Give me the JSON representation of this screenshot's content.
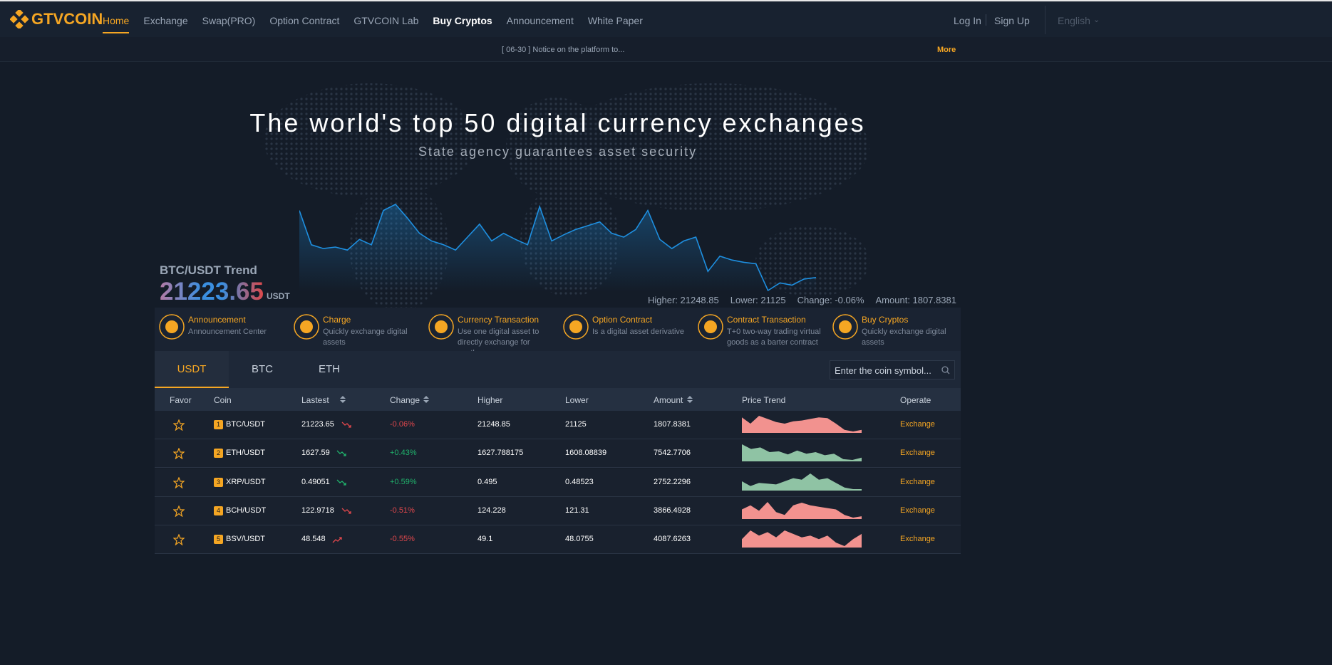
{
  "nav": {
    "logo": "GTVCOIN",
    "items": [
      "Home",
      "Exchange",
      "Swap(PRO)",
      "Option Contract",
      "GTVCOIN Lab",
      "Buy Cryptos",
      "Announcement",
      "White Paper"
    ],
    "login": "Log In",
    "signup": "Sign Up",
    "language": "English"
  },
  "notice": {
    "text": "[ 06-30 ] Notice on the platform to...",
    "more": "More"
  },
  "hero": {
    "title": "The world's top 50 digital currency exchanges",
    "subtitle": "State agency guarantees asset security"
  },
  "trend": {
    "title": "BTC/USDT Trend",
    "price": "21223.65",
    "unit": "USDT",
    "higher": "Higher: 21248.85",
    "lower": "Lower: 21125",
    "change": "Change: -0.06%",
    "amount": "Amount: 1807.8381",
    "color": "#1e8fe0",
    "line": [
      110,
      65,
      60,
      62,
      58,
      72,
      65,
      110,
      118,
      100,
      80,
      70,
      65,
      58,
      75,
      92,
      70,
      80,
      72,
      65,
      115,
      70,
      78,
      85,
      90,
      95,
      80,
      75,
      85,
      110,
      72,
      60,
      70,
      75,
      30,
      50,
      45,
      42,
      40,
      5,
      15,
      12,
      20,
      22
    ]
  },
  "features": [
    {
      "title": "Announcement",
      "desc": "Announcement Center"
    },
    {
      "title": "Charge",
      "desc": "Quickly exchange digital assets"
    },
    {
      "title": "Currency Transaction",
      "desc": "Use one digital asset to directly exchange for another"
    },
    {
      "title": "Option Contract",
      "desc": "Is a digital asset derivative"
    },
    {
      "title": "Contract Transaction",
      "desc": "T+0 two-way trading virtual goods as a barter contract"
    },
    {
      "title": "Buy Cryptos",
      "desc": "Quickly exchange digital assets"
    }
  ],
  "tabs": [
    "USDT",
    "BTC",
    "ETH"
  ],
  "search_placeholder": "Enter the coin symbol...",
  "table": {
    "headers": [
      "Favor",
      "Coin",
      "Lastest",
      "Change",
      "Higher",
      "Lower",
      "Amount",
      "Price Trend",
      "Operate"
    ],
    "rows": [
      {
        "rank": "1",
        "pair": "BTC/USDT",
        "last": "21223.65",
        "change": "-0.06%",
        "higher": "21248.85",
        "lower": "21125",
        "amount": "1807.8381",
        "operate": "Exchange",
        "color": "#e0474c",
        "trend": [
          20,
          12,
          22,
          18,
          14,
          12,
          15,
          16,
          18,
          20,
          19,
          12,
          4,
          2,
          4
        ]
      },
      {
        "rank": "2",
        "pair": "ETH/USDT",
        "last": "1627.59",
        "change": "+0.43%",
        "higher": "1627.788175",
        "lower": "1608.08839",
        "amount": "7542.7706",
        "operate": "Exchange",
        "color": "#20b26c",
        "trend": [
          22,
          16,
          18,
          12,
          13,
          9,
          14,
          10,
          12,
          8,
          10,
          3,
          2,
          5
        ]
      },
      {
        "rank": "3",
        "pair": "XRP/USDT",
        "last": "0.49051",
        "change": "+0.59%",
        "higher": "0.495",
        "lower": "0.48523",
        "amount": "2752.2296",
        "operate": "Exchange",
        "color": "#20b26c",
        "trend": [
          12,
          6,
          10,
          9,
          8,
          12,
          16,
          14,
          22,
          14,
          16,
          10,
          4,
          2,
          2
        ]
      },
      {
        "rank": "4",
        "pair": "BCH/USDT",
        "last": "122.9718",
        "change": "-0.51%",
        "higher": "124.228",
        "lower": "121.31",
        "amount": "3866.4928",
        "operate": "Exchange",
        "color": "#e0474c",
        "trend": [
          14,
          20,
          12,
          25,
          10,
          6,
          20,
          24,
          20,
          18,
          16,
          14,
          6,
          2,
          4
        ]
      },
      {
        "rank": "5",
        "pair": "BSV/USDT",
        "last": "48.548",
        "change": "-0.55%",
        "higher": "49.1",
        "lower": "48.0755",
        "amount": "4087.6263",
        "operate": "Exchange",
        "color": "#e0474c",
        "trend": [
          10,
          20,
          14,
          18,
          12,
          20,
          16,
          12,
          14,
          10,
          14,
          6,
          2,
          10,
          16
        ]
      }
    ]
  }
}
